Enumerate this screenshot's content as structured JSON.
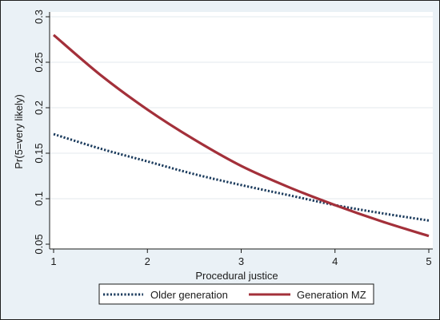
{
  "chart_data": {
    "type": "line",
    "xlabel": "Procedural justice",
    "ylabel": "Pr(5=very likely)",
    "xlim": [
      1,
      5
    ],
    "ylim": [
      0.05,
      0.3
    ],
    "xticks": [
      1,
      2,
      3,
      4,
      5
    ],
    "xtick_labels": [
      "1",
      "2",
      "3",
      "4",
      "5"
    ],
    "yticks": [
      0.05,
      0.1,
      0.15,
      0.2,
      0.25,
      0.3
    ],
    "ytick_labels": [
      "0.05",
      "0.1",
      "0.15",
      "0.2",
      "0.25",
      "0.3"
    ],
    "grid": "horizontal",
    "legend_position": "bottom",
    "series": [
      {
        "name": "Older generation",
        "color": "#1a3a5c",
        "style": "dotted",
        "x": [
          1,
          1.5,
          2,
          2.5,
          3,
          3.5,
          4,
          4.5,
          5
        ],
        "y": [
          0.171,
          0.155,
          0.141,
          0.127,
          0.115,
          0.104,
          0.093,
          0.084,
          0.076
        ]
      },
      {
        "name": "Generation MZ",
        "color": "#a3303a",
        "style": "solid",
        "x": [
          1,
          1.5,
          2,
          2.5,
          3,
          3.5,
          4,
          4.5,
          5
        ],
        "y": [
          0.28,
          0.236,
          0.198,
          0.165,
          0.136,
          0.113,
          0.093,
          0.075,
          0.059
        ]
      }
    ]
  }
}
